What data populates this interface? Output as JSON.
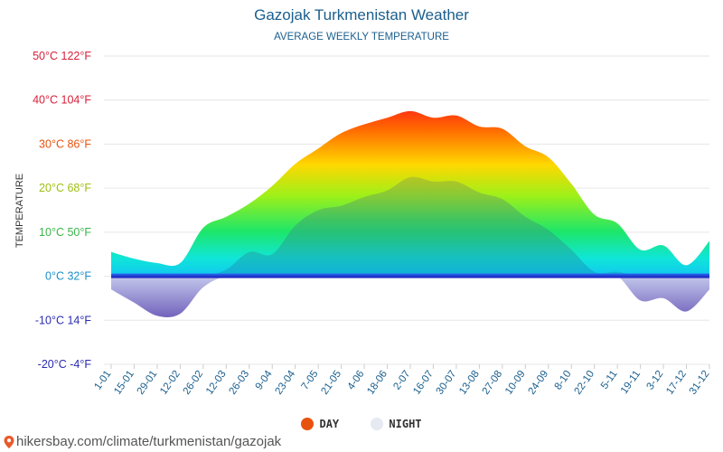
{
  "chart_data": {
    "type": "area",
    "title": "Gazojak Turkmenistan Weather",
    "subtitle": "AVERAGE WEEKLY TEMPERATURE",
    "ylabel": "TEMPERATURE",
    "ylim": [
      -20,
      50
    ],
    "yticks": [
      {
        "value": 50,
        "label": "50°C 122°F",
        "color": "#d9203a"
      },
      {
        "value": 40,
        "label": "40°C 104°F",
        "color": "#d9203a"
      },
      {
        "value": 30,
        "label": "30°C 86°F",
        "color": "#e8520f"
      },
      {
        "value": 20,
        "label": "20°C 68°F",
        "color": "#9fbf10"
      },
      {
        "value": 10,
        "label": "10°C 50°F",
        "color": "#3ab54a"
      },
      {
        "value": 0,
        "label": "0°C 32°F",
        "color": "#1a8fc8"
      },
      {
        "value": -10,
        "label": "-10°C 14°F",
        "color": "#2a2ab0"
      },
      {
        "value": -20,
        "label": "-20°C -4°F",
        "color": "#2a2ab0"
      }
    ],
    "categories": [
      "1-01",
      "15-01",
      "29-01",
      "12-02",
      "26-02",
      "12-03",
      "26-03",
      "9-04",
      "23-04",
      "7-05",
      "21-05",
      "4-06",
      "18-06",
      "2-07",
      "16-07",
      "30-07",
      "13-08",
      "27-08",
      "10-09",
      "24-09",
      "8-10",
      "22-10",
      "5-11",
      "19-11",
      "3-12",
      "17-12",
      "31-12"
    ],
    "series": [
      {
        "name": "DAY",
        "color": "#e8520f",
        "values": [
          5.5,
          4,
          3,
          3,
          11,
          13.5,
          16.5,
          20.5,
          25.5,
          29,
          32.5,
          34.5,
          36,
          37.5,
          36,
          36.5,
          34,
          33.5,
          29.5,
          27,
          21,
          14,
          12,
          6,
          7,
          2.5,
          8
        ]
      },
      {
        "name": "NIGHT",
        "color": "#e6e9f2",
        "values": [
          -3,
          -6,
          -9,
          -8.5,
          -2.5,
          1.5,
          5.5,
          5,
          11.5,
          15,
          16,
          18,
          19.5,
          22.5,
          21.5,
          21.5,
          19,
          17.5,
          13.5,
          10.5,
          6,
          1,
          1,
          -5.5,
          -5,
          -8,
          -3
        ]
      }
    ],
    "legend_position": "bottom-center",
    "grid": true
  },
  "legend": {
    "day": "DAY",
    "night": "NIGHT"
  },
  "footer": {
    "text": "hikersbay.com/climate/turkmenistan/gazojak"
  },
  "icons": {
    "footer": "map-pin-icon"
  }
}
